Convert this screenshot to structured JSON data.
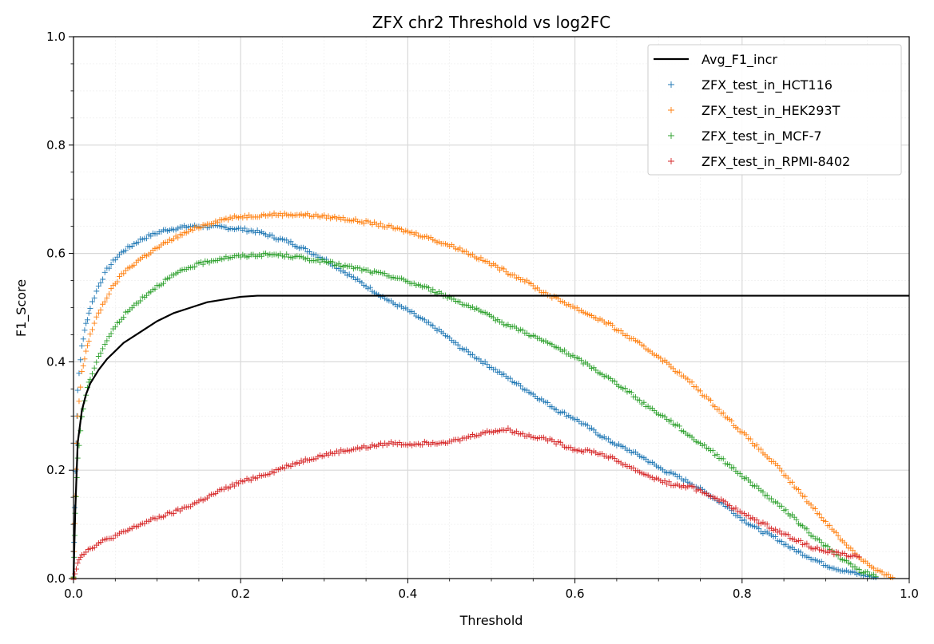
{
  "chart_data": {
    "type": "scatter",
    "title": "ZFX chr2 Threshold vs log2FC",
    "xlabel": "Threshold",
    "ylabel": "F1_Score",
    "xlim": [
      0.0,
      1.0
    ],
    "ylim": [
      0.0,
      1.0
    ],
    "xticks": [
      "0.0",
      "0.2",
      "0.4",
      "0.6",
      "0.8",
      "1.0"
    ],
    "yticks": [
      "0.0",
      "0.2",
      "0.4",
      "0.6",
      "0.8",
      "1.0"
    ],
    "grid": true,
    "minor_grid": true,
    "legend_position": "top-right",
    "line": {
      "name": "Avg_F1_incr",
      "color": "#000000",
      "x": [
        0.0,
        0.002,
        0.005,
        0.01,
        0.015,
        0.02,
        0.03,
        0.04,
        0.05,
        0.06,
        0.08,
        0.1,
        0.12,
        0.14,
        0.16,
        0.18,
        0.2,
        0.22,
        0.3,
        0.5,
        0.7,
        0.9,
        1.0
      ],
      "y": [
        0.0,
        0.12,
        0.25,
        0.31,
        0.34,
        0.36,
        0.385,
        0.405,
        0.42,
        0.435,
        0.455,
        0.475,
        0.49,
        0.5,
        0.51,
        0.515,
        0.52,
        0.522,
        0.522,
        0.522,
        0.522,
        0.522,
        0.522
      ]
    },
    "series": [
      {
        "name": "ZFX_test_in_HCT116",
        "color": "#1f77b4",
        "marker": "+",
        "x": [
          0.0,
          0.002,
          0.005,
          0.01,
          0.015,
          0.02,
          0.03,
          0.04,
          0.05,
          0.06,
          0.07,
          0.08,
          0.09,
          0.1,
          0.11,
          0.12,
          0.13,
          0.14,
          0.15,
          0.16,
          0.18,
          0.2,
          0.22,
          0.24,
          0.26,
          0.28,
          0.3,
          0.32,
          0.34,
          0.36,
          0.38,
          0.4,
          0.42,
          0.44,
          0.46,
          0.48,
          0.5,
          0.52,
          0.54,
          0.56,
          0.58,
          0.6,
          0.62,
          0.64,
          0.66,
          0.68,
          0.7,
          0.72,
          0.74,
          0.76,
          0.78,
          0.8,
          0.82,
          0.84,
          0.86,
          0.88,
          0.9,
          0.92,
          0.94,
          0.96
        ],
        "y": [
          0.0,
          0.2,
          0.35,
          0.43,
          0.47,
          0.5,
          0.54,
          0.57,
          0.59,
          0.605,
          0.615,
          0.625,
          0.632,
          0.638,
          0.643,
          0.646,
          0.648,
          0.65,
          0.65,
          0.65,
          0.648,
          0.645,
          0.64,
          0.63,
          0.62,
          0.605,
          0.59,
          0.57,
          0.55,
          0.53,
          0.51,
          0.495,
          0.475,
          0.455,
          0.43,
          0.41,
          0.39,
          0.37,
          0.35,
          0.33,
          0.31,
          0.295,
          0.275,
          0.255,
          0.24,
          0.225,
          0.205,
          0.19,
          0.175,
          0.155,
          0.135,
          0.11,
          0.09,
          0.075,
          0.055,
          0.04,
          0.025,
          0.015,
          0.008,
          0.002
        ]
      },
      {
        "name": "ZFX_test_in_HEK293T",
        "color": "#ff7f0e",
        "marker": "+",
        "x": [
          0.0,
          0.002,
          0.005,
          0.01,
          0.015,
          0.02,
          0.03,
          0.04,
          0.05,
          0.06,
          0.08,
          0.1,
          0.12,
          0.14,
          0.16,
          0.18,
          0.2,
          0.22,
          0.24,
          0.26,
          0.28,
          0.3,
          0.32,
          0.34,
          0.36,
          0.38,
          0.4,
          0.42,
          0.44,
          0.46,
          0.48,
          0.5,
          0.52,
          0.54,
          0.56,
          0.58,
          0.6,
          0.62,
          0.64,
          0.66,
          0.68,
          0.7,
          0.72,
          0.74,
          0.76,
          0.78,
          0.8,
          0.82,
          0.84,
          0.86,
          0.88,
          0.9,
          0.92,
          0.94,
          0.96,
          0.97,
          0.98
        ],
        "y": [
          0.0,
          0.15,
          0.3,
          0.38,
          0.42,
          0.45,
          0.49,
          0.52,
          0.545,
          0.565,
          0.59,
          0.61,
          0.628,
          0.642,
          0.655,
          0.663,
          0.668,
          0.67,
          0.672,
          0.672,
          0.671,
          0.668,
          0.665,
          0.66,
          0.655,
          0.648,
          0.64,
          0.632,
          0.62,
          0.61,
          0.595,
          0.58,
          0.565,
          0.55,
          0.53,
          0.515,
          0.5,
          0.485,
          0.47,
          0.45,
          0.43,
          0.41,
          0.385,
          0.36,
          0.33,
          0.3,
          0.27,
          0.24,
          0.21,
          0.175,
          0.14,
          0.105,
          0.07,
          0.04,
          0.015,
          0.008,
          0.002
        ]
      },
      {
        "name": "ZFX_test_in_MCF-7",
        "color": "#2ca02c",
        "marker": "+",
        "x": [
          0.0,
          0.002,
          0.005,
          0.01,
          0.015,
          0.02,
          0.03,
          0.04,
          0.05,
          0.06,
          0.08,
          0.1,
          0.12,
          0.14,
          0.16,
          0.18,
          0.2,
          0.22,
          0.24,
          0.26,
          0.28,
          0.3,
          0.32,
          0.34,
          0.36,
          0.38,
          0.4,
          0.42,
          0.44,
          0.46,
          0.48,
          0.5,
          0.52,
          0.54,
          0.56,
          0.58,
          0.6,
          0.62,
          0.64,
          0.66,
          0.68,
          0.7,
          0.72,
          0.74,
          0.76,
          0.78,
          0.8,
          0.82,
          0.84,
          0.86,
          0.88,
          0.9,
          0.92,
          0.94,
          0.96
        ],
        "y": [
          0.0,
          0.12,
          0.22,
          0.3,
          0.34,
          0.37,
          0.41,
          0.44,
          0.465,
          0.485,
          0.515,
          0.54,
          0.56,
          0.575,
          0.585,
          0.592,
          0.595,
          0.597,
          0.598,
          0.595,
          0.59,
          0.585,
          0.578,
          0.572,
          0.565,
          0.558,
          0.548,
          0.538,
          0.525,
          0.512,
          0.498,
          0.482,
          0.468,
          0.455,
          0.44,
          0.425,
          0.408,
          0.39,
          0.37,
          0.35,
          0.325,
          0.305,
          0.285,
          0.26,
          0.24,
          0.215,
          0.19,
          0.165,
          0.14,
          0.115,
          0.085,
          0.06,
          0.035,
          0.015,
          0.004
        ]
      },
      {
        "name": "ZFX_test_in_RPMI-8402",
        "color": "#d62728",
        "marker": "+",
        "x": [
          0.0,
          0.005,
          0.01,
          0.02,
          0.03,
          0.04,
          0.06,
          0.08,
          0.1,
          0.12,
          0.14,
          0.16,
          0.18,
          0.2,
          0.22,
          0.24,
          0.26,
          0.28,
          0.3,
          0.32,
          0.34,
          0.36,
          0.38,
          0.4,
          0.42,
          0.44,
          0.46,
          0.48,
          0.5,
          0.52,
          0.54,
          0.56,
          0.58,
          0.6,
          0.62,
          0.64,
          0.66,
          0.68,
          0.7,
          0.72,
          0.74,
          0.76,
          0.78,
          0.8,
          0.82,
          0.84,
          0.86,
          0.88,
          0.9,
          0.92,
          0.94
        ],
        "y": [
          0.0,
          0.03,
          0.045,
          0.055,
          0.065,
          0.072,
          0.085,
          0.1,
          0.112,
          0.122,
          0.135,
          0.15,
          0.165,
          0.178,
          0.188,
          0.198,
          0.21,
          0.22,
          0.228,
          0.235,
          0.24,
          0.245,
          0.25,
          0.248,
          0.25,
          0.252,
          0.255,
          0.265,
          0.272,
          0.275,
          0.265,
          0.26,
          0.25,
          0.238,
          0.235,
          0.225,
          0.21,
          0.195,
          0.182,
          0.172,
          0.168,
          0.155,
          0.14,
          0.12,
          0.105,
          0.09,
          0.075,
          0.06,
          0.05,
          0.045,
          0.04
        ]
      }
    ]
  }
}
